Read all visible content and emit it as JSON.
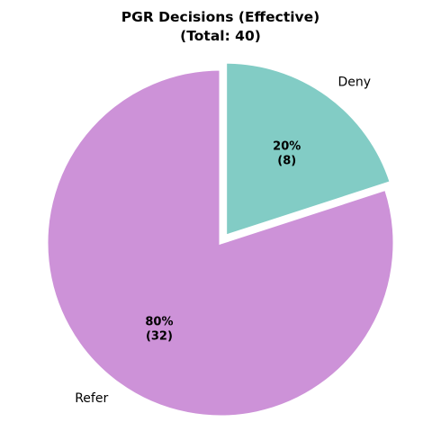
{
  "chart_data": {
    "type": "pie",
    "title": "PGR Decisions (Effective)",
    "subtitle": "(Total: 40)",
    "total": 40,
    "start_angle_deg": 90,
    "counterclock": false,
    "slices": [
      {
        "label": "Deny",
        "value": 8,
        "percent_label": "20%",
        "count_label": "(8)",
        "color": "#82ccc5",
        "exploded": true
      },
      {
        "label": "Refer",
        "value": 32,
        "percent_label": "80%",
        "count_label": "(32)",
        "color": "#cd92d8",
        "exploded": false
      }
    ],
    "edge_color": "#ffffff",
    "legend": "none"
  }
}
